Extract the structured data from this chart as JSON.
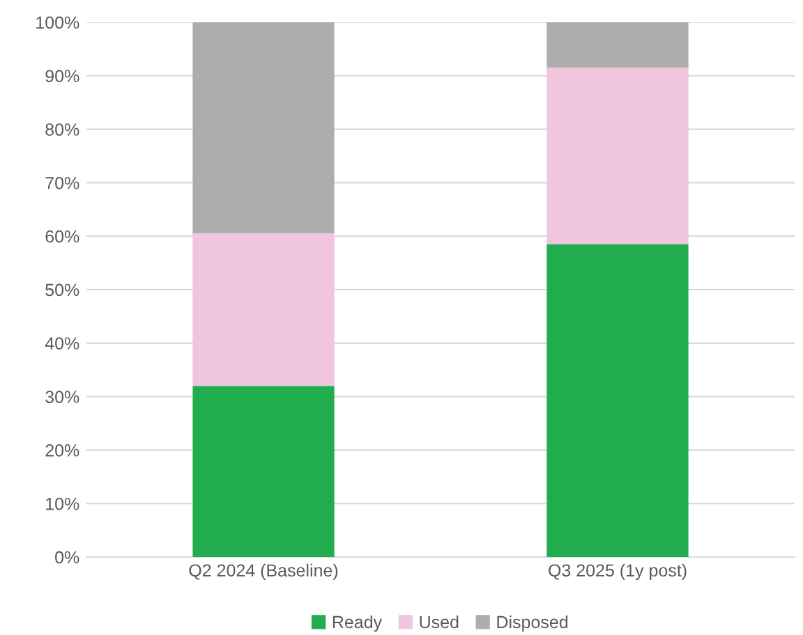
{
  "chart_data": {
    "type": "bar",
    "stacked": true,
    "categories": [
      "Q2 2024 (Baseline)",
      "Q3 2025 (1y post)"
    ],
    "series": [
      {
        "name": "Ready",
        "color": "#21ad4e",
        "values": [
          32,
          58.5
        ]
      },
      {
        "name": "Used",
        "color": "#efc6de",
        "values": [
          28.5,
          33
        ]
      },
      {
        "name": "Disposed",
        "color": "#adadad",
        "values": [
          39.5,
          8.5
        ]
      }
    ],
    "ylim": [
      0,
      100
    ],
    "yticks": [
      {
        "value": 0,
        "label": "0%"
      },
      {
        "value": 10,
        "label": "10%"
      },
      {
        "value": 20,
        "label": "20%"
      },
      {
        "value": 30,
        "label": "30%"
      },
      {
        "value": 40,
        "label": "40%"
      },
      {
        "value": 50,
        "label": "50%"
      },
      {
        "value": 60,
        "label": "60%"
      },
      {
        "value": 70,
        "label": "70%"
      },
      {
        "value": 80,
        "label": "80%"
      },
      {
        "value": 90,
        "label": "90%"
      },
      {
        "value": 100,
        "label": "100%"
      }
    ],
    "grid": "y",
    "legend": "bottom"
  }
}
